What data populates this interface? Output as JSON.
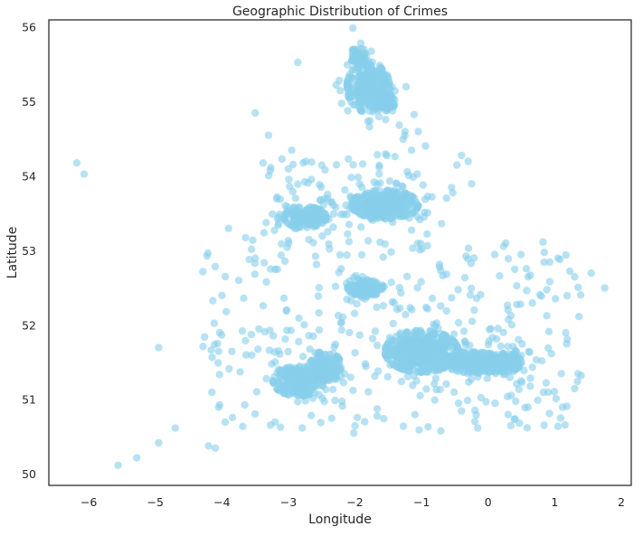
{
  "chart_data": {
    "type": "scatter",
    "title": "Geographic Distribution of Crimes",
    "xlabel": "Longitude",
    "ylabel": "Latitude",
    "xlim": [
      -6.6,
      2.15
    ],
    "ylim": [
      49.85,
      56.1
    ],
    "xticks": [
      -6,
      -5,
      -4,
      -3,
      -2,
      -1,
      0,
      1,
      2
    ],
    "xtick_labels": [
      "−6",
      "−5",
      "−4",
      "−3",
      "−2",
      "−1",
      "0",
      "1",
      "2"
    ],
    "yticks": [
      50,
      51,
      52,
      53,
      54,
      55,
      56
    ],
    "ytick_labels": [
      "50",
      "51",
      "52",
      "53",
      "54",
      "55",
      "56"
    ],
    "grid": false,
    "point_color": "#87ceeb",
    "point_alpha": 0.6,
    "clusters": [
      {
        "cx": -1.8,
        "cy": 55.2,
        "rx": 0.32,
        "ry": 0.34,
        "n": 320
      },
      {
        "cx": -1.55,
        "cy": 55.0,
        "rx": 0.15,
        "ry": 0.12,
        "n": 120
      },
      {
        "cx": -1.95,
        "cy": 55.62,
        "rx": 0.12,
        "ry": 0.12,
        "n": 60
      },
      {
        "cx": -2.75,
        "cy": 53.45,
        "rx": 0.32,
        "ry": 0.14,
        "n": 200
      },
      {
        "cx": -1.55,
        "cy": 53.62,
        "rx": 0.5,
        "ry": 0.19,
        "n": 420
      },
      {
        "cx": -1.85,
        "cy": 52.5,
        "rx": 0.26,
        "ry": 0.11,
        "n": 160
      },
      {
        "cx": -2.85,
        "cy": 51.25,
        "rx": 0.38,
        "ry": 0.2,
        "n": 260
      },
      {
        "cx": -2.45,
        "cy": 51.45,
        "rx": 0.24,
        "ry": 0.2,
        "n": 160
      },
      {
        "cx": -1.0,
        "cy": 51.65,
        "rx": 0.55,
        "ry": 0.28,
        "n": 520
      },
      {
        "cx": -0.2,
        "cy": 51.5,
        "rx": 0.45,
        "ry": 0.14,
        "n": 320
      },
      {
        "cx": 0.25,
        "cy": 51.5,
        "rx": 0.25,
        "ry": 0.12,
        "n": 140
      }
    ],
    "outliers": [
      [
        -6.18,
        54.18
      ],
      [
        -6.07,
        54.03
      ],
      [
        -5.56,
        50.12
      ],
      [
        -5.28,
        50.22
      ],
      [
        -4.95,
        50.42
      ],
      [
        -4.95,
        51.7
      ],
      [
        -4.7,
        50.62
      ],
      [
        -4.2,
        50.38
      ],
      [
        -4.1,
        50.35
      ],
      [
        -3.5,
        54.85
      ],
      [
        -3.3,
        54.55
      ],
      [
        -3.0,
        54.1
      ],
      [
        -2.95,
        54.35
      ],
      [
        -2.5,
        54.15
      ],
      [
        -1.25,
        54.55
      ],
      [
        -1.25,
        54.6
      ],
      [
        -1.05,
        54.6
      ],
      [
        -1.15,
        54.35
      ],
      [
        -0.4,
        54.28
      ],
      [
        -0.3,
        54.2
      ],
      [
        -0.25,
        53.9
      ],
      [
        0.6,
        52.65
      ],
      [
        1.05,
        52.9
      ],
      [
        1.3,
        52.65
      ],
      [
        1.55,
        52.7
      ],
      [
        1.75,
        52.5
      ],
      [
        0.4,
        52.75
      ],
      [
        -3.5,
        52.9
      ],
      [
        -3.2,
        52.75
      ],
      [
        -4.0,
        52.4
      ],
      [
        -3.9,
        53.3
      ],
      [
        -4.05,
        51.65
      ],
      [
        -3.85,
        51.65
      ],
      [
        -3.55,
        51.6
      ],
      [
        -0.55,
        53.85
      ],
      [
        0.1,
        52.95
      ],
      [
        -4.15,
        51.1
      ],
      [
        -4.05,
        50.9
      ],
      [
        -3.95,
        50.7
      ],
      [
        -3.2,
        50.7
      ],
      [
        1.35,
        51.35
      ],
      [
        1.3,
        51.15
      ],
      [
        1.1,
        51.35
      ],
      [
        0.9,
        51.1
      ],
      [
        -2.0,
        50.65
      ],
      [
        -2.35,
        50.75
      ],
      [
        -1.1,
        50.8
      ],
      [
        -0.4,
        50.85
      ],
      [
        0.3,
        50.8
      ],
      [
        0.6,
        50.9
      ]
    ]
  }
}
